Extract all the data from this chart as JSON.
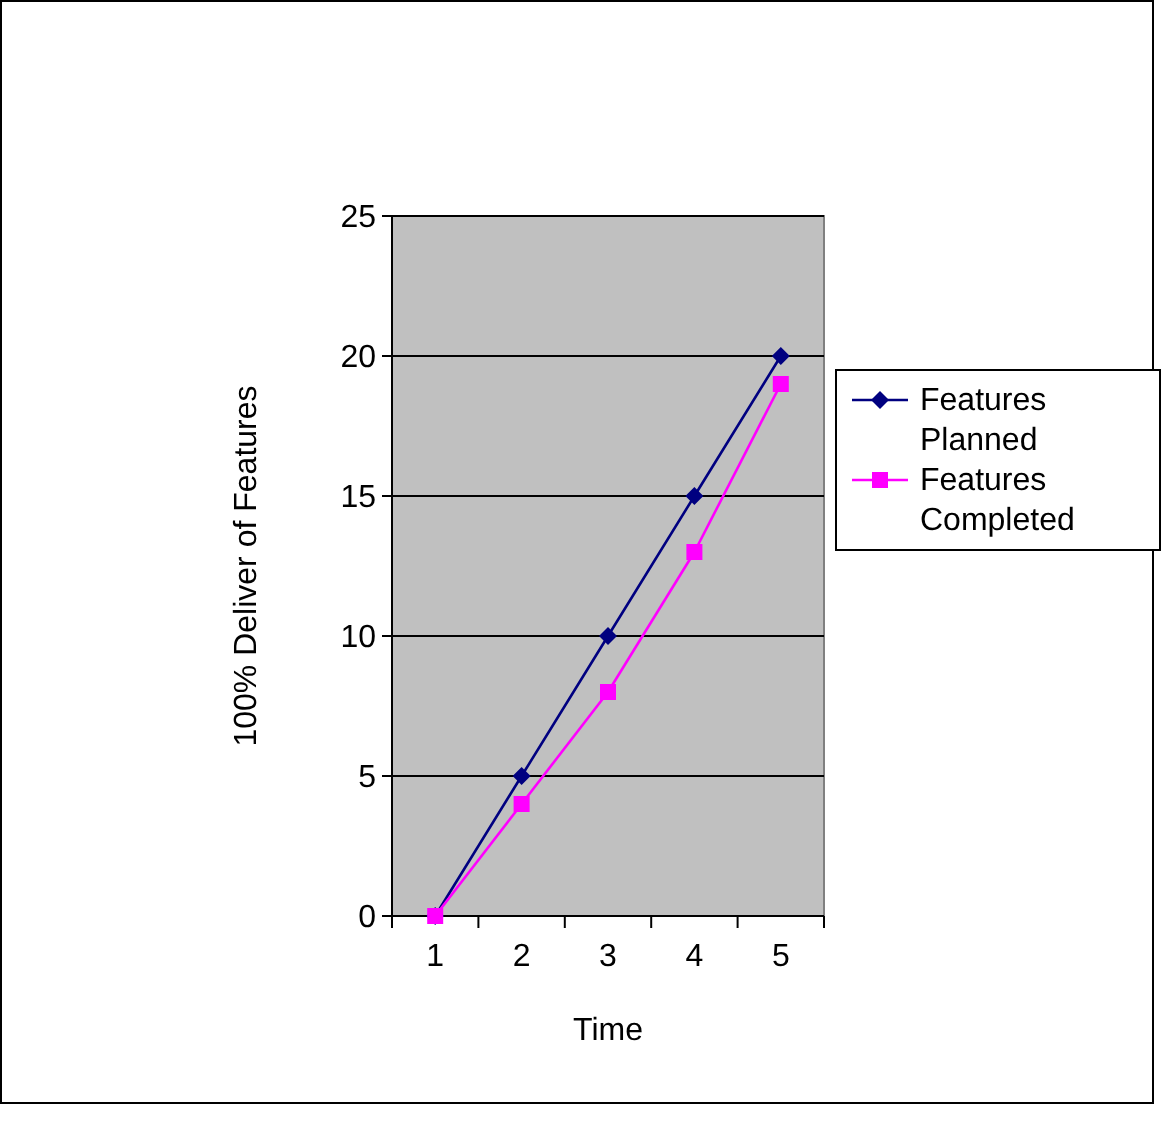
{
  "chart_data": {
    "type": "line",
    "xlabel": "Time",
    "ylabel": "100% Deliver of Features",
    "categories": [
      "1",
      "2",
      "3",
      "4",
      "5"
    ],
    "series": [
      {
        "name": "Features Planned",
        "color": "#000080",
        "values": [
          0,
          5,
          10,
          15,
          20
        ],
        "marker": "diamond"
      },
      {
        "name": "Features Completed",
        "color": "#ff00ff",
        "values": [
          0,
          4,
          8,
          13,
          19
        ],
        "marker": "square"
      }
    ],
    "ylim": [
      0,
      25
    ],
    "yticks": [
      0,
      5,
      10,
      15,
      20,
      25
    ],
    "grid": "y",
    "legend": "right"
  }
}
